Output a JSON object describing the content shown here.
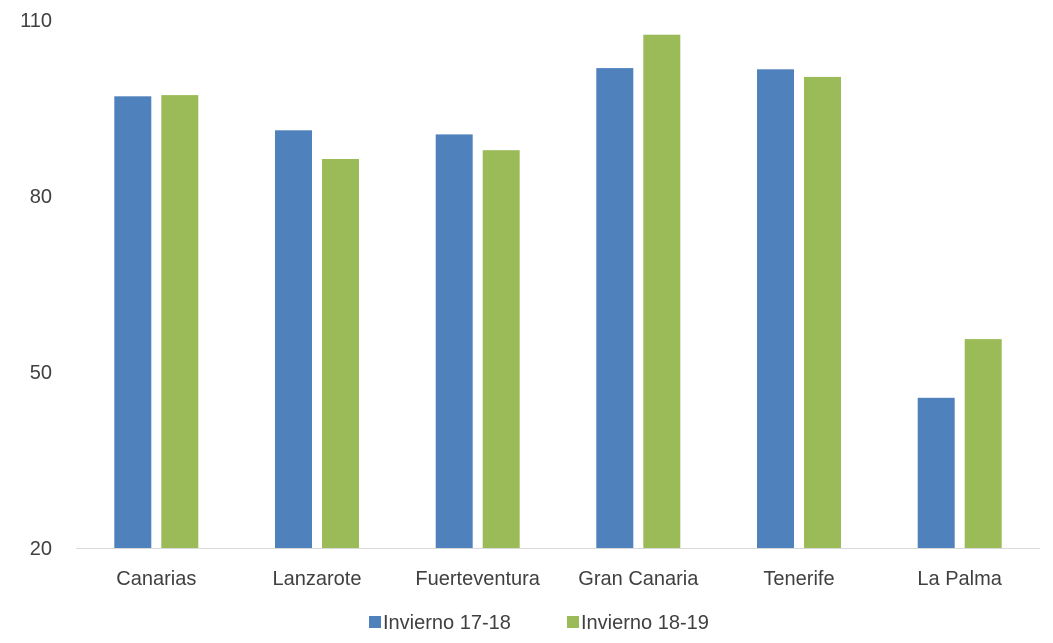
{
  "chart_data": {
    "type": "bar",
    "categories": [
      "Canarias",
      "Lanzarote",
      "Fuerteventura",
      "Gran Canaria",
      "Tenerife",
      "La Palma"
    ],
    "series": [
      {
        "name": "Invierno 17-18",
        "color": "#4F81BD",
        "values": [
          97.0,
          91.2,
          90.5,
          101.8,
          101.6,
          45.6
        ]
      },
      {
        "name": "Invierno 18-19",
        "color": "#9BBB59",
        "values": [
          97.2,
          86.3,
          87.8,
          107.5,
          100.3,
          55.6
        ]
      }
    ],
    "title": "",
    "xlabel": "",
    "ylabel": "",
    "ylim": [
      20,
      110
    ],
    "yticks": [
      20,
      50,
      80,
      110
    ],
    "grid": false,
    "legend_position": "bottom"
  }
}
